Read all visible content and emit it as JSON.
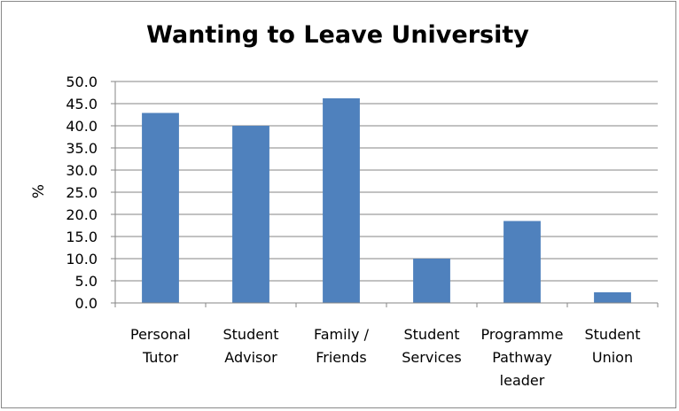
{
  "chart_data": {
    "type": "bar",
    "title": "Wanting to Leave University",
    "xlabel": "",
    "ylabel": "%",
    "ylim": [
      0,
      50
    ],
    "ytick_step": 5,
    "ytick_labels": [
      "0.0",
      "5.0",
      "10.0",
      "15.0",
      "20.0",
      "25.0",
      "30.0",
      "35.0",
      "40.0",
      "45.0",
      "50.0"
    ],
    "categories": [
      [
        "Personal",
        "Tutor"
      ],
      [
        "Student",
        "Advisor"
      ],
      [
        "Family /",
        "Friends"
      ],
      [
        "Student",
        "Services"
      ],
      [
        "Programme",
        "Pathway",
        "leader"
      ],
      [
        "Student",
        "Union"
      ]
    ],
    "values": [
      42.9,
      40.0,
      46.2,
      10.0,
      18.5,
      2.4
    ],
    "grid": true,
    "legend": "none",
    "bar_color": "#4F81BD",
    "grid_color": "#868686"
  }
}
